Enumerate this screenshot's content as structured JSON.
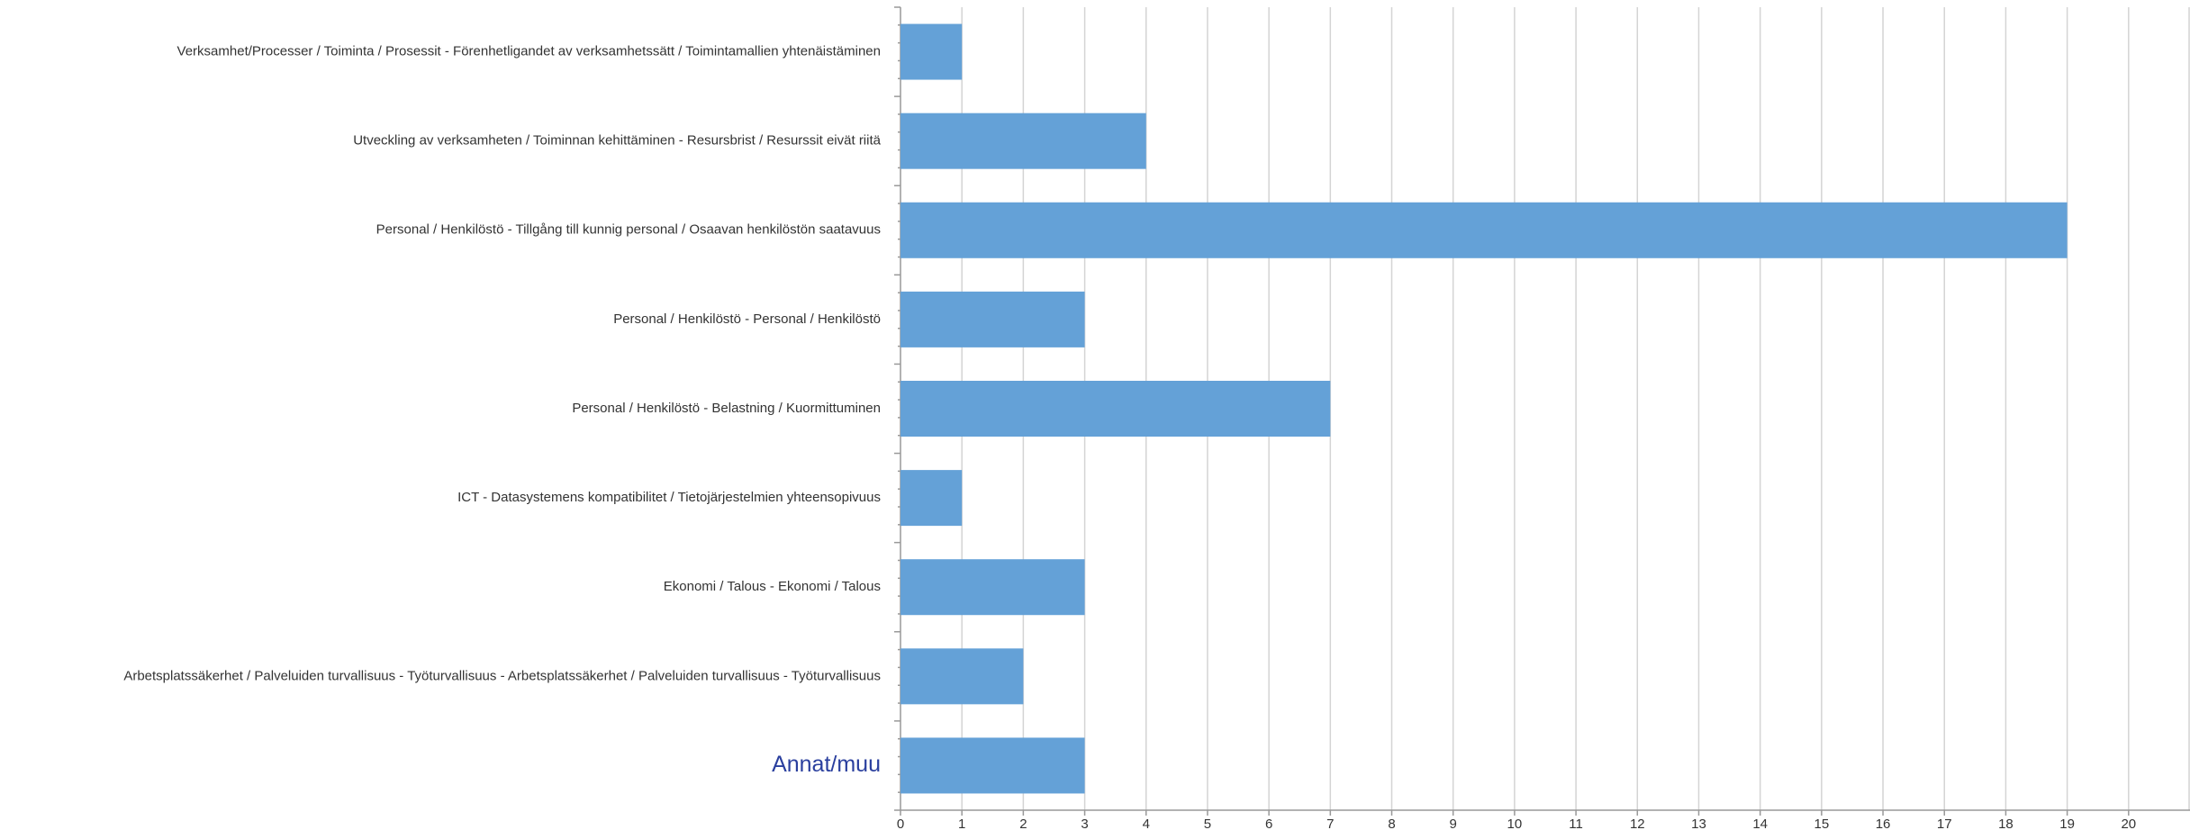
{
  "chart_data": {
    "type": "hbar",
    "categories": [
      "Verksamhet/Processer / Toiminta / Prosessit - Förenhetligandet av verksamhetssätt / Toimintamallien yhtenäistäminen",
      "Utveckling av verksamheten / Toiminnan kehittäminen - Resursbrist / Resurssit eivät riitä",
      "Personal / Henkilöstö - Tillgång till kunnig personal / Osaavan henkilöstön saatavuus",
      "Personal / Henkilöstö - Personal / Henkilöstö",
      "Personal / Henkilöstö - Belastning / Kuormittuminen",
      "ICT - Datasystemens kompatibilitet / Tietojärjestelmien yhteensopivuus",
      "Ekonomi / Talous - Ekonomi / Talous",
      "Arbetsplatssäkerhet / Palveluiden turvallisuus - Työturvallisuus - Arbetsplatssäkerhet / Palveluiden turvallisuus - Työturvallisuus",
      "Annat/muu"
    ],
    "values": [
      1,
      4,
      19,
      3,
      7,
      1,
      3,
      2,
      3
    ],
    "color": "#64a1d7",
    "xlim": [
      0,
      21
    ],
    "xticks": [
      0,
      1,
      2,
      3,
      4,
      5,
      6,
      7,
      8,
      9,
      10,
      11,
      12,
      13,
      14,
      15,
      16,
      17,
      18,
      19,
      20
    ],
    "grid": true
  }
}
